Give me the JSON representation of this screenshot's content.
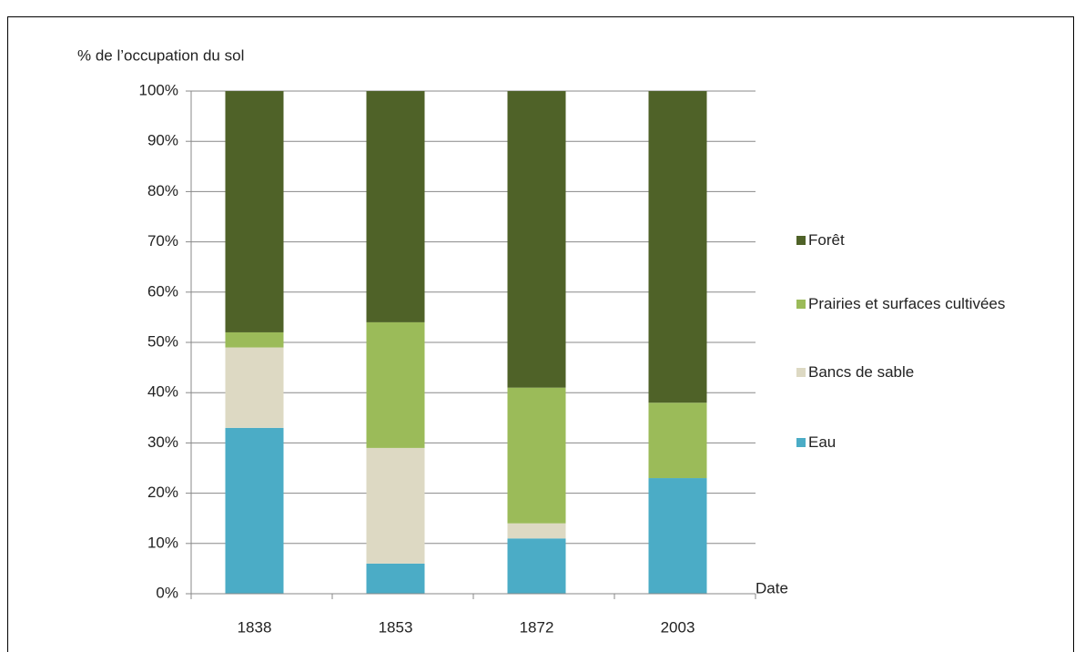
{
  "chart_data": {
    "type": "stacked_bar",
    "y_axis_label": "% de l’occupation du sol",
    "x_axis_label": "Date",
    "categories": [
      "1838",
      "1853",
      "1872",
      "2003"
    ],
    "series": [
      {
        "name": "Eau",
        "color": "#4bacc6",
        "values": [
          33,
          6,
          11,
          23
        ]
      },
      {
        "name": "Bancs de sable",
        "color": "#ddd9c3",
        "values": [
          16,
          23,
          3,
          0
        ]
      },
      {
        "name": "Prairies et surfaces cultivées",
        "color": "#9bbb59",
        "values": [
          3,
          25,
          27,
          15
        ]
      },
      {
        "name": "Forêt",
        "color": "#4f6228",
        "values": [
          48,
          46,
          59,
          62
        ]
      }
    ],
    "ylim": [
      0,
      100
    ],
    "yticks": [
      {
        "value": 0,
        "label": "0%"
      },
      {
        "value": 10,
        "label": "10%"
      },
      {
        "value": 20,
        "label": "20%"
      },
      {
        "value": 30,
        "label": "30%"
      },
      {
        "value": 40,
        "label": "40%"
      },
      {
        "value": 50,
        "label": "50%"
      },
      {
        "value": 60,
        "label": "60%"
      },
      {
        "value": 70,
        "label": "70%"
      },
      {
        "value": 80,
        "label": "80%"
      },
      {
        "value": 90,
        "label": "90%"
      },
      {
        "value": 100,
        "label": "100%"
      }
    ],
    "grid": true,
    "legend": "right"
  }
}
